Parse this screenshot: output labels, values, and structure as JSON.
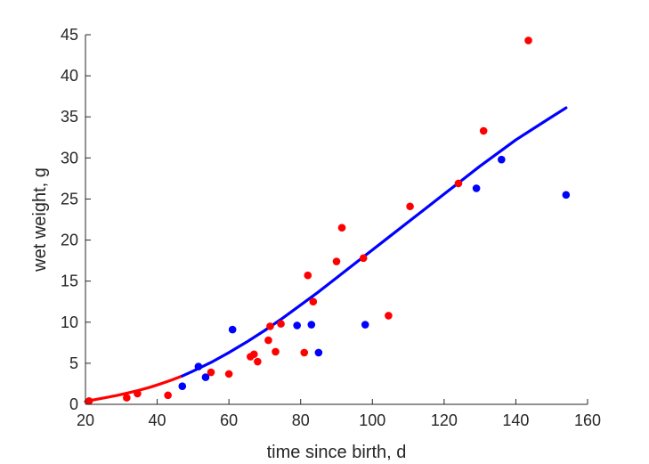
{
  "chart_data": {
    "type": "scatter",
    "title": "",
    "xlabel": "time since birth, d",
    "ylabel": "wet weight, g",
    "xlim": [
      20,
      160
    ],
    "ylim": [
      0,
      45
    ],
    "xticks": [
      20,
      40,
      60,
      80,
      100,
      120,
      140,
      160
    ],
    "yticks": [
      0,
      5,
      10,
      15,
      20,
      25,
      30,
      35,
      40,
      45
    ],
    "grid": false,
    "series": [
      {
        "color": "#ff0000",
        "kind": "points",
        "points": [
          [
            21,
            0.4
          ],
          [
            31.5,
            0.8
          ],
          [
            34.5,
            1.3
          ],
          [
            43,
            1.1
          ],
          [
            55,
            3.9
          ],
          [
            60,
            3.7
          ],
          [
            66,
            5.8
          ],
          [
            67,
            6.1
          ],
          [
            68,
            5.2
          ],
          [
            71,
            7.8
          ],
          [
            71.5,
            9.5
          ],
          [
            73,
            6.4
          ],
          [
            74.5,
            9.8
          ],
          [
            81,
            6.3
          ],
          [
            82,
            15.7
          ],
          [
            83.5,
            12.5
          ],
          [
            90,
            17.4
          ],
          [
            91.5,
            21.5
          ],
          [
            97.5,
            17.8
          ],
          [
            104.5,
            10.8
          ],
          [
            110.5,
            24.1
          ],
          [
            124,
            26.9
          ],
          [
            131,
            33.3
          ],
          [
            143.5,
            44.3
          ]
        ]
      },
      {
        "color": "#0000ff",
        "kind": "points",
        "points": [
          [
            47,
            2.2
          ],
          [
            51.5,
            4.6
          ],
          [
            53.5,
            3.3
          ],
          [
            61,
            9.1
          ],
          [
            79,
            9.6
          ],
          [
            83,
            9.7
          ],
          [
            85,
            6.3
          ],
          [
            98,
            9.7
          ],
          [
            129,
            26.3
          ],
          [
            136,
            29.8
          ],
          [
            154,
            25.5
          ]
        ]
      },
      {
        "color": "#ff0000",
        "kind": "line",
        "points": [
          [
            20,
            0.35
          ],
          [
            23,
            0.6
          ],
          [
            26,
            0.85
          ],
          [
            29,
            1.1
          ],
          [
            32,
            1.4
          ],
          [
            35,
            1.72
          ],
          [
            38,
            2.08
          ],
          [
            41,
            2.5
          ],
          [
            44,
            2.95
          ],
          [
            47,
            3.45
          ]
        ]
      },
      {
        "color": "#0000ff",
        "kind": "line",
        "points": [
          [
            47,
            3.45
          ],
          [
            50,
            4.05
          ],
          [
            55,
            5.1
          ],
          [
            60,
            6.3
          ],
          [
            65,
            7.6
          ],
          [
            70,
            9.0
          ],
          [
            75,
            10.5
          ],
          [
            80,
            12.1
          ],
          [
            85,
            13.7
          ],
          [
            90,
            15.4
          ],
          [
            95,
            17.1
          ],
          [
            100,
            18.8
          ],
          [
            105,
            20.5
          ],
          [
            110,
            22.2
          ],
          [
            115,
            23.9
          ],
          [
            120,
            25.6
          ],
          [
            125,
            27.3
          ],
          [
            130,
            29.0
          ],
          [
            135,
            30.6
          ],
          [
            140,
            32.2
          ],
          [
            145,
            33.6
          ],
          [
            150,
            35.0
          ],
          [
            154,
            36.1
          ]
        ]
      }
    ]
  }
}
